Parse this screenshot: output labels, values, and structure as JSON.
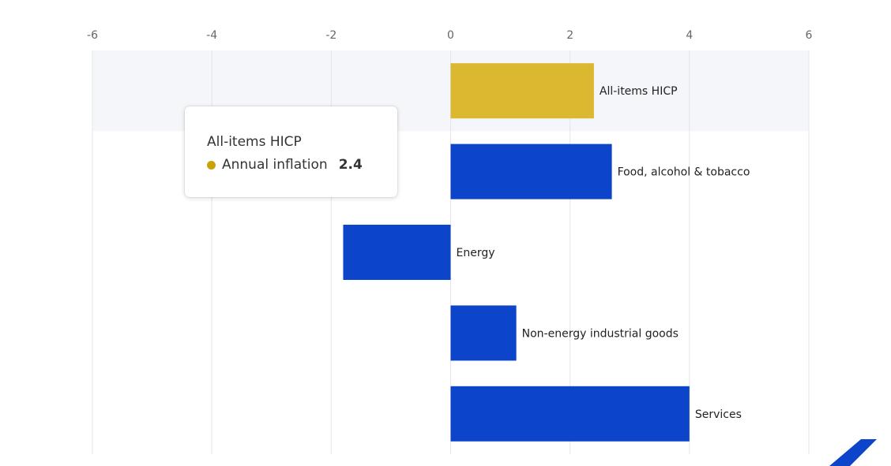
{
  "chart_data": {
    "type": "bar",
    "orientation": "horizontal",
    "categories": [
      "All-items HICP",
      "Food, alcohol & tobacco",
      "Energy",
      "Non-energy industrial goods",
      "Services"
    ],
    "series": [
      {
        "name": "Annual inflation",
        "values": [
          2.4,
          2.7,
          -1.8,
          1.1,
          4.0
        ]
      }
    ],
    "bar_colors": [
      "#dbb830",
      "#0c45c9",
      "#0c45c9",
      "#0c45c9",
      "#0c45c9"
    ],
    "highlighted_index": 0,
    "xlim": [
      -6,
      6
    ],
    "x_ticks": [
      "-6",
      "-4",
      "-2",
      "0",
      "2",
      "4",
      "6"
    ],
    "x_tick_values": [
      -6,
      -4,
      -2,
      0,
      2,
      4,
      6
    ],
    "grid": true,
    "tick_position": "top"
  },
  "tooltip": {
    "title": "All-items HICP",
    "series_name": "Annual inflation",
    "value": "2.4",
    "dot_color": "#c9a20a"
  },
  "colors": {
    "highlight_band": "#f4f6fa",
    "grid": "#e3e5ea",
    "logo": "#0c45c9"
  },
  "logo_icon": "ecb-stripe-icon"
}
